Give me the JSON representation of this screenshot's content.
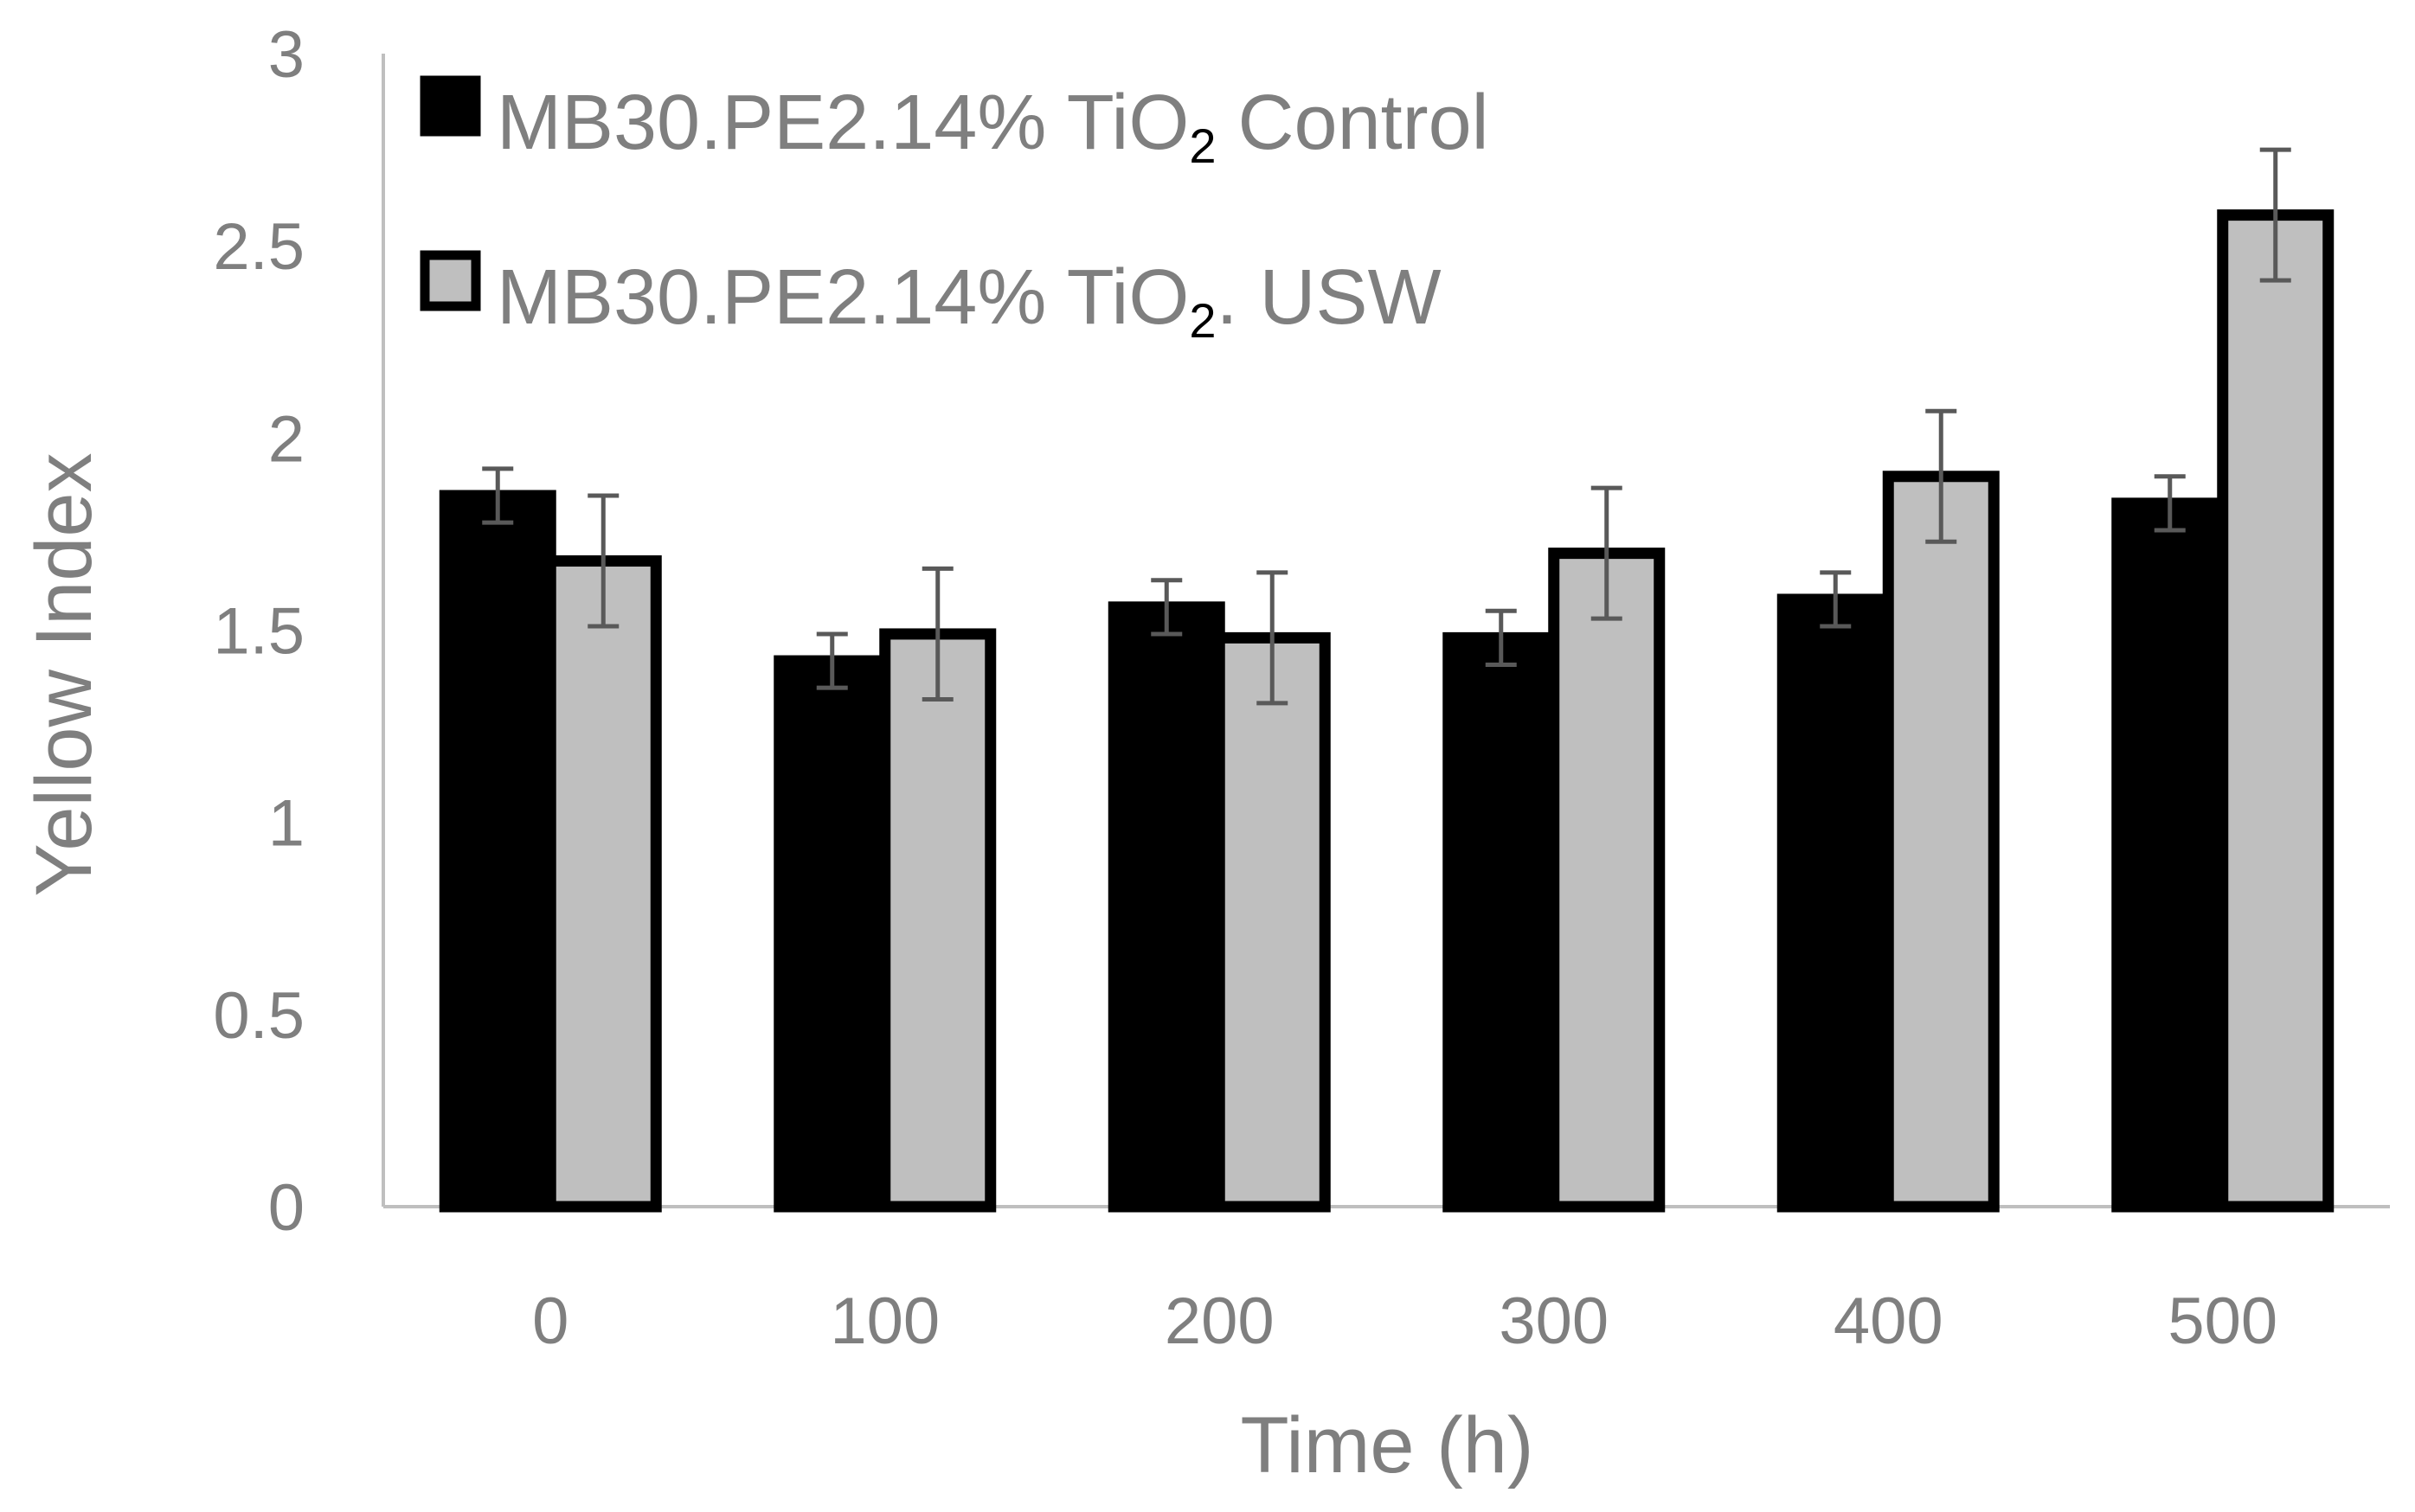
{
  "chart_data": {
    "type": "bar",
    "title": "",
    "xlabel": "Time (h)",
    "ylabel": "Yellow Index",
    "ylim": [
      0,
      3
    ],
    "yticks": [
      "0",
      "0.5",
      "1",
      "1.5",
      "2",
      "2.5",
      "3"
    ],
    "grid": false,
    "legend_position": "top-left",
    "categories": [
      "0",
      "100",
      "200",
      "300",
      "400",
      "500"
    ],
    "series": [
      {
        "name": "MB30.PE2.14% TiO₂ Control",
        "legend_text": "MB30.PE2.14% TiO",
        "legend_sub": "2",
        "legend_suffix": " Control",
        "color": "#000000",
        "values": [
          1.85,
          1.42,
          1.56,
          1.48,
          1.58,
          1.83
        ],
        "errors": [
          0.07,
          0.07,
          0.07,
          0.07,
          0.07,
          0.07
        ]
      },
      {
        "name": "MB30.PE2.14% TiO₂. USW",
        "legend_text": "MB30.PE2.14% TiO",
        "legend_sub": "2",
        "legend_suffix": ". USW",
        "color": "#bfbfbf",
        "values": [
          1.68,
          1.49,
          1.48,
          1.7,
          1.9,
          2.58
        ],
        "errors": [
          0.17,
          0.17,
          0.17,
          0.17,
          0.17,
          0.17
        ]
      }
    ],
    "colors": {
      "axis": "#bfbfbf",
      "text": "#7f7f7f",
      "error_bar": "#595959",
      "bar_outline": "#000000"
    }
  }
}
